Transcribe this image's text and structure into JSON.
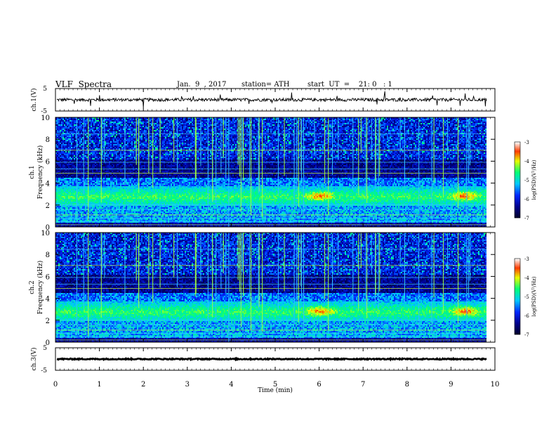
{
  "header": {
    "title": "VLF  Spectra",
    "date": "Jan.  9  , 2017",
    "station": "station= ATH",
    "start": "start  UT  =    21: 0   : 1"
  },
  "colors": {
    "background": "#ffffff",
    "axes": "#000000",
    "spectrogram_low": "#000020",
    "colormap": [
      "#000000",
      "#00008b",
      "#0000ff",
      "#00c8ff",
      "#00ff80",
      "#ffff00",
      "#ff0000",
      "#ffffff"
    ]
  },
  "chart_data": [
    {
      "type": "line",
      "name": "ch1-waveform",
      "ylabel": "ch.1(V)",
      "ylim": [
        -5,
        5
      ],
      "yticks": [
        "5",
        "-5"
      ],
      "xlim": [
        0,
        10
      ],
      "level": 0,
      "description_values": {
        "mean_volts": 0,
        "amplitude_volts": 1.5
      }
    },
    {
      "type": "heatmap",
      "name": "ch1-spectrogram",
      "ylabel": "ch.1\nFrequency  (kHz)",
      "ylim": [
        0,
        10
      ],
      "yticks": [
        "0",
        "2",
        "4",
        "6",
        "8",
        "10"
      ],
      "xlim": [
        0,
        9.8
      ],
      "colorbar": {
        "label": "log(PSD)(V²/Hz)",
        "range": [
          -7,
          -3
        ],
        "ticks": [
          "-3",
          "-4",
          "-5",
          "-6",
          "-7"
        ]
      },
      "emission_band_khz": [
        2,
        4
      ],
      "peak_times_min": [
        6.0,
        9.3
      ]
    },
    {
      "type": "heatmap",
      "name": "ch2-spectrogram",
      "ylabel": "ch.2\nFrequency  (kHz)",
      "ylim": [
        0,
        10
      ],
      "yticks": [
        "0",
        "2",
        "4",
        "6",
        "8",
        "10"
      ],
      "xlim": [
        0,
        9.8
      ],
      "colorbar": {
        "label": "log(PSD)(V²/Hz)",
        "range": [
          -7,
          -3
        ],
        "ticks": [
          "-3",
          "-4",
          "-5",
          "-6",
          "-7"
        ]
      },
      "emission_band_khz": [
        2,
        4
      ],
      "peak_times_min": [
        6.0,
        9.3
      ]
    },
    {
      "type": "line",
      "name": "ch3-waveform",
      "ylabel": "ch.3(V)",
      "ylim": [
        -5,
        5
      ],
      "yticks": [
        "5",
        "-5"
      ],
      "xlim": [
        0,
        10
      ],
      "xlabel": "Time  (min)",
      "xticks": [
        "0",
        "1",
        "2",
        "3",
        "4",
        "5",
        "6",
        "7",
        "8",
        "9",
        "10"
      ],
      "level": 0
    }
  ]
}
